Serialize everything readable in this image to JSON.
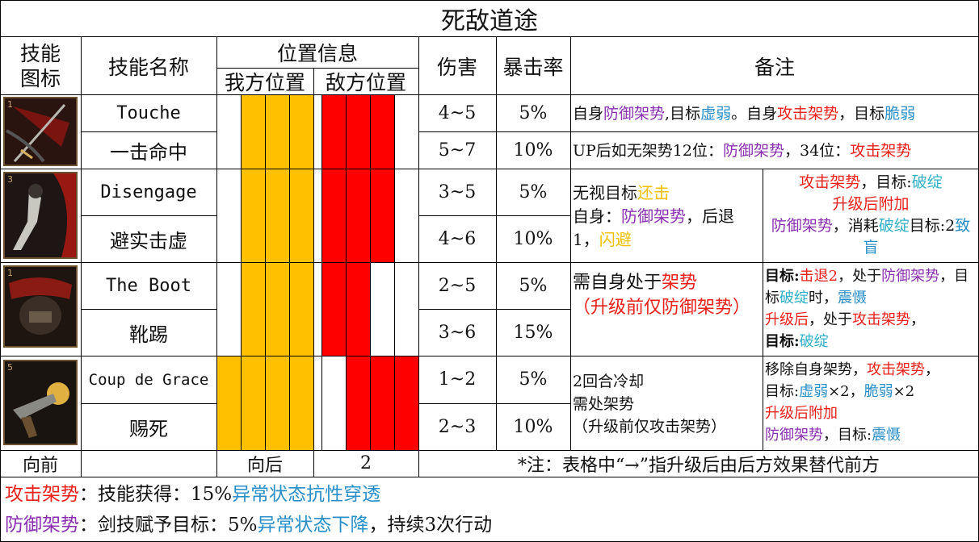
{
  "title": "死敌道途",
  "headers": {
    "icon_l1": "技能",
    "icon_l2": "图标",
    "name": "技能名称",
    "position": "位置信息",
    "self_pos": "我方位置",
    "enemy_pos": "敌方位置",
    "damage": "伤害",
    "crit": "暴击率",
    "notes": "备注"
  },
  "icon_levels": [
    "1",
    "3",
    "1",
    "5"
  ],
  "skills": [
    {
      "name": "Touche",
      "damage": "4~5",
      "crit": "5%"
    },
    {
      "name": "一击命中",
      "damage": "5~7",
      "crit": "10%"
    },
    {
      "name": "Disengage",
      "damage": "3~5",
      "crit": "5%"
    },
    {
      "name": "避实击虚",
      "damage": "4~6",
      "crit": "10%"
    },
    {
      "name": "The Boot",
      "damage": "2~5",
      "crit": "5%"
    },
    {
      "name": "靴踢",
      "damage": "3~6",
      "crit": "15%"
    },
    {
      "name": "Coup de Grace",
      "damage": "1~2",
      "crit": "5%"
    },
    {
      "name": "赐死",
      "damage": "2~3",
      "crit": "10%"
    }
  ],
  "notes": {
    "touche": {
      "t1": "自身",
      "t2": "防御架势",
      "t3": ",目标",
      "t4": "虚弱",
      "t5": "。自身",
      "t6": "攻击架势",
      "t7": "，目标",
      "t8": "脆弱"
    },
    "hit": {
      "t1": "UP后如无架势12位：",
      "t2": "防御架势",
      "t3": "，34位：",
      "t4": "攻击架势"
    },
    "dis_left": {
      "t1": "无视目标",
      "t2": "还击",
      "t3": "自身：",
      "t4": "防御架势",
      "t5": "，后退1，",
      "t6": "闪避"
    },
    "dis_right": {
      "t1": "攻击架势",
      "t2": "，目标:",
      "t3": "破绽",
      "t4": "升级后附加",
      "t5": "防御架势",
      "t6": "，消耗",
      "t7": "破绽",
      "t8": "目标:2",
      "t9": "致盲"
    },
    "boot_left": {
      "t1": "需自身处于",
      "t2": "架势",
      "t3": "（升级前仅防御架势）"
    },
    "boot_right": {
      "t1": "目标",
      "t2": ":",
      "t3": "击退2",
      "t4": "，处于",
      "t5": "防御架势",
      "t6": "，目标",
      "t7": "破绽",
      "t8": "时，",
      "t9": "震慑",
      "t10": "升级后",
      "t11": "，处于",
      "t12": "攻击架势",
      "t13": "，",
      "t14": "目标",
      "t15": ":",
      "t16": "破绽"
    },
    "coup_left": {
      "l1": "2回合冷却",
      "l2": "需处架势",
      "l3": "（升级前仅攻击架势）"
    },
    "coup_right": {
      "t1": "移除自身架势，",
      "t2": "攻击架势",
      "t3": "，",
      "t4": "目标:",
      "t5": "虚弱",
      "t6": "×2，",
      "t7": "脆弱",
      "t8": "×2",
      "t9": "升级后附加",
      "t10": "防御架势",
      "t11": "，目标:",
      "t12": "震慑"
    }
  },
  "footer_row": {
    "forward": "向前",
    "backward": "向后",
    "count": "2",
    "remark": "*注：表格中“→”指升级后由后方效果替代前方"
  },
  "legend": {
    "attack_name": "攻击架势",
    "attack_t1": "：技能获得：15%",
    "attack_t2": "异常状态抗性穿透",
    "defense_name": "防御架势",
    "defense_t1": "：剑技赋予目标：5%",
    "defense_t2": "异常状态下降",
    "defense_t3": "，持续3次行动"
  },
  "colors": {
    "self_pos": "#ffc000",
    "enemy_pos": "#ff0000",
    "attack": "#e8201a",
    "defense": "#8a2fb0",
    "debuff": "#2a8fc8"
  }
}
